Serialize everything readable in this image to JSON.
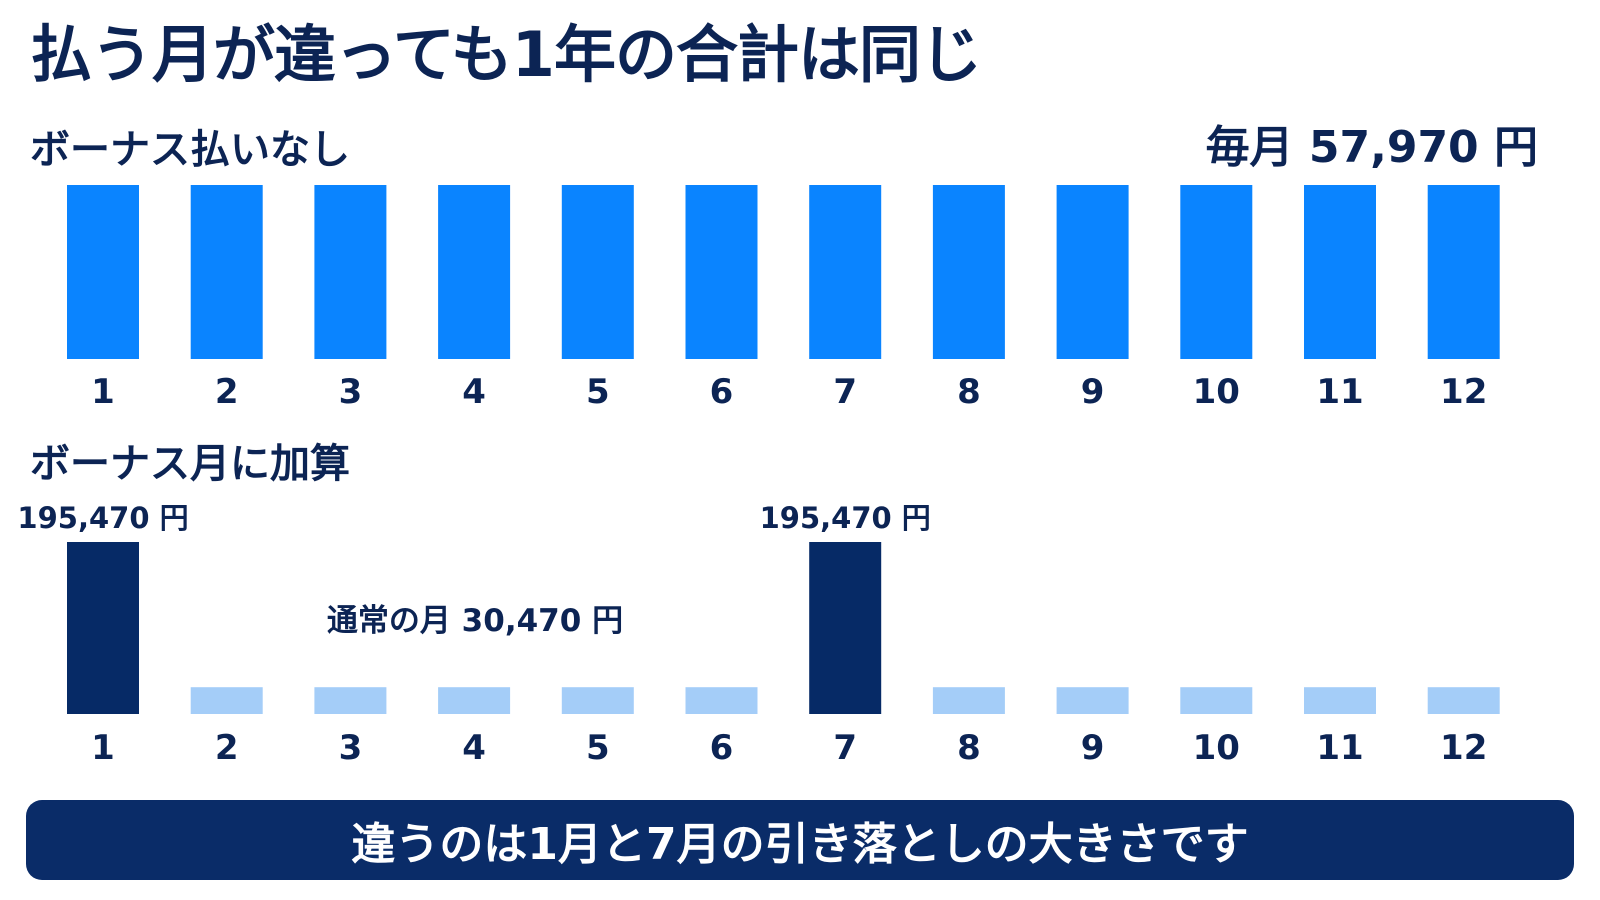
{
  "title": "払う月が違っても1年の合計は同じ",
  "top_section": {
    "label": "ボーナス払いなし",
    "monthly_label": "毎月 57,970 円"
  },
  "bottom_section": {
    "label": "ボーナス月に加算",
    "bonus_value_label": "195,470 円",
    "normal_label": "通常の月 30,470 円"
  },
  "banner": {
    "text": "違うのは1月と7月の引き落としの大きさです"
  },
  "colors": {
    "uniform_bar": "#0a84ff",
    "bonus_bar": "#062a66",
    "normal_bar": "#a4cdf8",
    "text": "#0c2454",
    "banner": "#0a2c68"
  },
  "chart_data": [
    {
      "type": "bar",
      "title": "ボーナス払いなし",
      "categories": [
        "1",
        "2",
        "3",
        "4",
        "5",
        "6",
        "7",
        "8",
        "9",
        "10",
        "11",
        "12"
      ],
      "values": [
        57970,
        57970,
        57970,
        57970,
        57970,
        57970,
        57970,
        57970,
        57970,
        57970,
        57970,
        57970
      ],
      "annotation": "毎月 57,970 円"
    },
    {
      "type": "bar",
      "title": "ボーナス月に加算",
      "categories": [
        "1",
        "2",
        "3",
        "4",
        "5",
        "6",
        "7",
        "8",
        "9",
        "10",
        "11",
        "12"
      ],
      "values": [
        195470,
        30470,
        30470,
        30470,
        30470,
        30470,
        195470,
        30470,
        30470,
        30470,
        30470,
        30470
      ],
      "bonus_months": [
        "1",
        "7"
      ],
      "annotations": [
        "195,470 円",
        "195,470 円",
        "通常の月 30,470 円"
      ]
    }
  ]
}
